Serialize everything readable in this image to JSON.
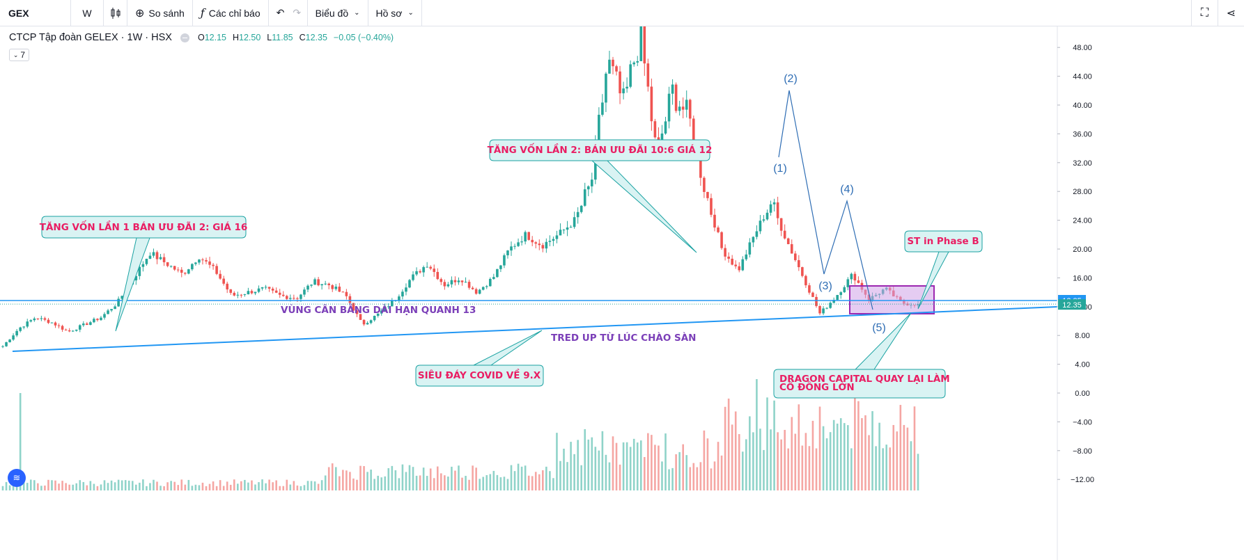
{
  "toolbar": {
    "symbol": "GEX",
    "interval": "W",
    "compare_label": "So sánh",
    "indicators_label": "Các chỉ báo",
    "chart_label": "Biểu đồ",
    "profile_label": "Hồ sơ"
  },
  "legend": {
    "title": "CTCP Tập đoàn GELEX · 1W · HSX",
    "o_label": "O",
    "o": "12.15",
    "h_label": "H",
    "h": "12.50",
    "l_label": "L",
    "l": "11.85",
    "c_label": "C",
    "c": "12.35",
    "change": "−0.05 (−0.40%)",
    "study_count": "7"
  },
  "colors": {
    "up": "#26a69a",
    "down": "#ef5350",
    "line": "#2196f3",
    "callout_fill": "#d9f3f3",
    "callout_border": "#1aa2a2",
    "callout_text": "#e91e63",
    "box_fill": "#cfa3e8",
    "box_border": "#9c27b0"
  },
  "price_axis": {
    "ticks": [
      "48.00",
      "44.00",
      "40.00",
      "36.00",
      "32.00",
      "28.00",
      "24.00",
      "20.00",
      "16.00",
      "12.00",
      "8.00",
      "4.00",
      "0.00",
      "−4.00",
      "−8.00",
      "−12.00"
    ],
    "tag_upper": "12.85",
    "tag_last": "12.35"
  },
  "annotations": {
    "callout1": "TĂNG VỐN LẦN 1 BÁN ƯU ĐÃI 2: GIÁ 16",
    "callout2": "TĂNG VỐN LẦN 2: BÁN ƯU ĐÃI 10:6 GIÁ 12",
    "callout3": "SIÊU ĐÁY COVID VỀ 9.X",
    "callout4_line1": "DRAGON CAPITAL QUAY LẠI LÀM",
    "callout4_line2": "CỔ ĐÔNG LỚN",
    "callout5": "ST in Phase B",
    "balance_zone": "VÙNG CÂN BẰNG DÀI HẠN QUANH 13",
    "trend_up": "TRED UP TỪ LÚC CHÀO SÀN",
    "waves": [
      "(1)",
      "(2)",
      "(3)",
      "(4)",
      "(5)"
    ]
  },
  "chart_data": {
    "type": "candlestick",
    "symbol": "GEX",
    "interval": "1W",
    "exchange": "HSX",
    "ylim": [
      -13.5,
      51
    ],
    "last_close": 12.35,
    "horizontal_levels": [
      12.85
    ],
    "elliott_wave_points": [
      {
        "label": "(1)",
        "price": 33
      },
      {
        "label": "(2)",
        "price": 42
      },
      {
        "label": "(3)",
        "price": 17
      },
      {
        "label": "(4)",
        "price": 26.5
      },
      {
        "label": "(5)",
        "price": 11
      }
    ],
    "price_path_keypoints": [
      6.5,
      9,
      10.5,
      9.8,
      8.5,
      9.5,
      10.5,
      12.5,
      16,
      19.5,
      18,
      16.5,
      19,
      17,
      13.5,
      14,
      14.5,
      13.5,
      13.2,
      15.5,
      15,
      13.5,
      9.5,
      11,
      13,
      16,
      18,
      15,
      16,
      14,
      16,
      20,
      22,
      20.5,
      22,
      24,
      29,
      46,
      40,
      50,
      33,
      42,
      38,
      28,
      20,
      17,
      22,
      26.5,
      21,
      16,
      11,
      13.5,
      16.5,
      13,
      14.5,
      12.5,
      12.35
    ]
  }
}
